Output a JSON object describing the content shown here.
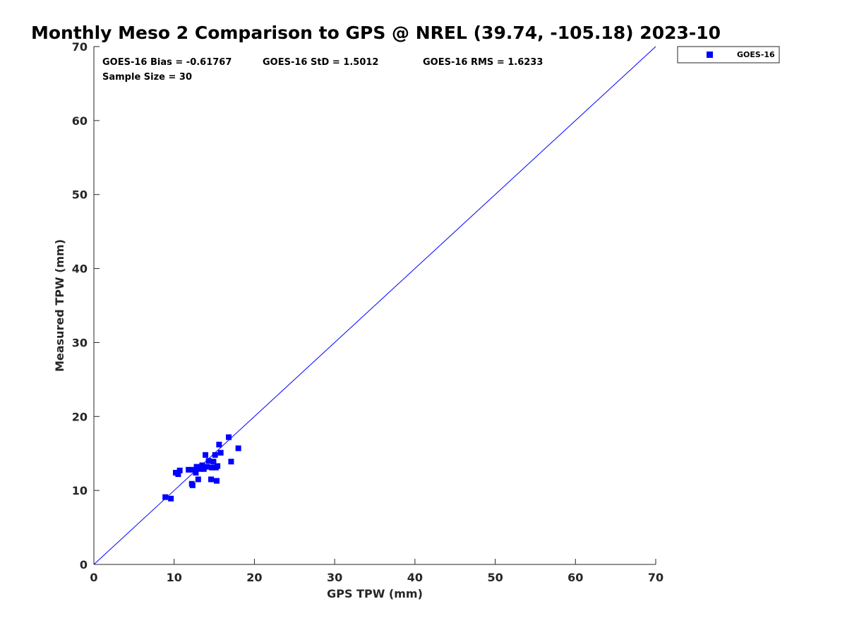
{
  "chart_data": {
    "type": "scatter",
    "title": "Monthly Meso 2 Comparison to GPS @ NREL (39.74, -105.18) 2023-10",
    "xlabel": "GPS TPW (mm)",
    "ylabel": "Measured TPW (mm)",
    "xlim": [
      0,
      70
    ],
    "ylim": [
      0,
      70
    ],
    "xticks": [
      "0",
      "10",
      "20",
      "30",
      "40",
      "50",
      "60",
      "70"
    ],
    "yticks": [
      "0",
      "10",
      "20",
      "30",
      "40",
      "50",
      "60",
      "70"
    ],
    "grid": false,
    "legend_position": "top-right, outside plot",
    "reference_line": {
      "x": [
        0,
        70
      ],
      "y": [
        0,
        70
      ],
      "color": "#0000ff"
    },
    "stats": {
      "bias": "GOES-16 Bias = -0.61767",
      "std": "GOES-16 StD = 1.5012",
      "rms": "GOES-16 RMS = 1.6233",
      "sample_size": "Sample Size = 30"
    },
    "series": [
      {
        "name": "GOES-16",
        "color": "#0000ff",
        "marker": "square",
        "x": [
          8.9,
          9.6,
          10.2,
          10.5,
          10.7,
          11.8,
          12.3,
          12.2,
          12.4,
          12.7,
          12.8,
          13.0,
          13.2,
          13.5,
          13.7,
          13.9,
          14.1,
          14.3,
          14.6,
          14.9,
          14.7,
          15.1,
          15.3,
          15.4,
          15.6,
          15.8,
          16.8,
          17.1,
          18.0,
          15.2
        ],
        "y": [
          9.1,
          8.9,
          12.4,
          12.2,
          12.7,
          12.8,
          10.7,
          10.9,
          12.8,
          12.4,
          13.2,
          11.5,
          12.9,
          13.4,
          12.9,
          14.8,
          13.2,
          14.0,
          11.5,
          13.9,
          13.1,
          14.8,
          11.3,
          13.3,
          16.2,
          15.1,
          17.2,
          13.9,
          15.7,
          13.1
        ]
      }
    ]
  }
}
